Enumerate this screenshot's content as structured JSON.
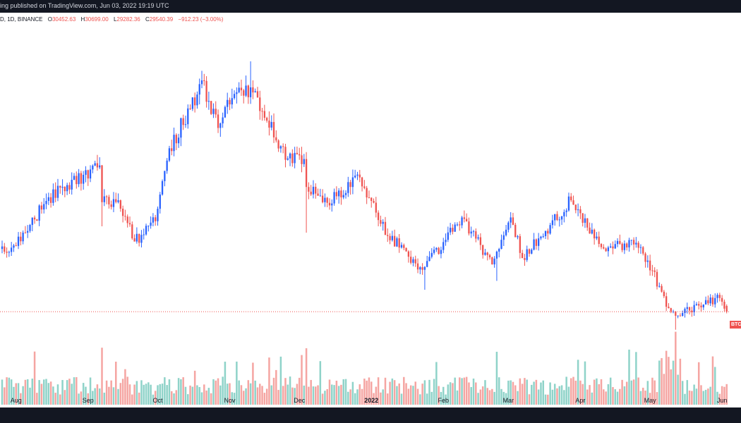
{
  "header": {
    "publish_text": "ing published on TradingView.com, Jun 03, 2022 19:19 UTC"
  },
  "legend": {
    "symbol": "D, 1D, BINANCE",
    "open_label": "O",
    "open": "30452.63",
    "high_label": "H",
    "high": "30699.00",
    "low_label": "L",
    "low": "29282.36",
    "close_label": "C",
    "close": "29540.39",
    "change": "−912.23 (−3.00%)"
  },
  "price_tag": "BTC",
  "colors": {
    "up": "#2962ff",
    "down": "#ef5350",
    "vol_up": "#8fd3c9",
    "vol_down": "#f5a5a2",
    "price_line": "#ef5350"
  },
  "chart_data": {
    "type": "candlestick",
    "symbol": "BTCUSDT",
    "interval": "1D",
    "exchange": "BINANCE",
    "x_ticks": [
      "Aug",
      "Sep",
      "Oct",
      "Nov",
      "Dec",
      "2022",
      "Feb",
      "Mar",
      "Apr",
      "May",
      "Jun"
    ],
    "close_path_keypoints": [
      {
        "date": "2021-07-27",
        "close": 39000
      },
      {
        "date": "2021-08-05",
        "close": 42000
      },
      {
        "date": "2021-08-14",
        "close": 47000
      },
      {
        "date": "2021-08-23",
        "close": 49500
      },
      {
        "date": "2021-09-06",
        "close": 52600
      },
      {
        "date": "2021-09-07",
        "close": 46800
      },
      {
        "date": "2021-09-14",
        "close": 47100
      },
      {
        "date": "2021-09-21",
        "close": 40600
      },
      {
        "date": "2021-09-30",
        "close": 43800
      },
      {
        "date": "2021-10-06",
        "close": 55300
      },
      {
        "date": "2021-10-15",
        "close": 61500
      },
      {
        "date": "2021-10-20",
        "close": 66000
      },
      {
        "date": "2021-10-27",
        "close": 58500
      },
      {
        "date": "2021-11-02",
        "close": 63200
      },
      {
        "date": "2021-11-10",
        "close": 64900
      },
      {
        "date": "2021-11-16",
        "close": 60100
      },
      {
        "date": "2021-11-26",
        "close": 53700
      },
      {
        "date": "2021-12-03",
        "close": 53600
      },
      {
        "date": "2021-12-04",
        "close": 49200
      },
      {
        "date": "2021-12-13",
        "close": 46700
      },
      {
        "date": "2021-12-27",
        "close": 50700
      },
      {
        "date": "2022-01-05",
        "close": 43400
      },
      {
        "date": "2022-01-21",
        "close": 36200
      },
      {
        "date": "2022-01-24",
        "close": 36600
      },
      {
        "date": "2022-02-09",
        "close": 44400
      },
      {
        "date": "2022-02-22",
        "close": 37000
      },
      {
        "date": "2022-03-02",
        "close": 44400
      },
      {
        "date": "2022-03-07",
        "close": 38000
      },
      {
        "date": "2022-03-28",
        "close": 47100
      },
      {
        "date": "2022-04-11",
        "close": 39500
      },
      {
        "date": "2022-04-25",
        "close": 40400
      },
      {
        "date": "2022-04-30",
        "close": 37600
      },
      {
        "date": "2022-05-09",
        "close": 30100
      },
      {
        "date": "2022-05-12",
        "close": 28900
      },
      {
        "date": "2022-05-31",
        "close": 31700
      },
      {
        "date": "2022-06-03",
        "close": 29540.39
      }
    ],
    "annotated_last_bar": {
      "date": "2022-06-03",
      "open": 30452.63,
      "high": 30699.0,
      "low": 29282.36,
      "close": 29540.39,
      "change": -912.23,
      "change_pct": -3.0
    },
    "volume_spike_dates": [
      "2021-09-07",
      "2021-12-04",
      "2022-02-24",
      "2022-05-12"
    ],
    "price_line": 29540.39
  }
}
